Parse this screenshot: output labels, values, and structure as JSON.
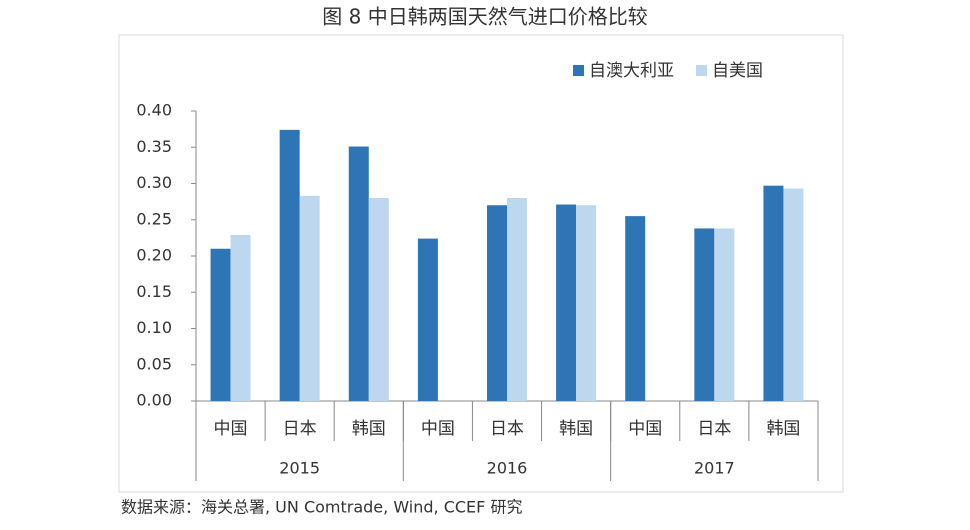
{
  "chart_data": {
    "type": "bar",
    "title": "图 8  中日韩两国天然气进口价格比较",
    "categories": [
      "中国",
      "日本",
      "韩国",
      "中国",
      "日本",
      "韩国",
      "中国",
      "日本",
      "韩国"
    ],
    "category_groups": [
      "2015",
      "2016",
      "2017"
    ],
    "series": [
      {
        "name": "自澳大利亚",
        "color": "#2e75b6",
        "values": [
          0.21,
          0.374,
          0.351,
          0.224,
          0.27,
          0.271,
          0.255,
          0.238,
          0.297
        ]
      },
      {
        "name": "自美国",
        "color": "#bdd7ee",
        "values": [
          0.229,
          0.283,
          0.28,
          null,
          0.28,
          0.27,
          null,
          0.238,
          0.293
        ]
      }
    ],
    "ylim": [
      0,
      0.4
    ],
    "yticks": [
      {
        "value": 0,
        "label": "0.00"
      },
      {
        "value": 0.05,
        "label": "0.05"
      },
      {
        "value": 0.1,
        "label": "0.10"
      },
      {
        "value": 0.15,
        "label": "0.15"
      },
      {
        "value": 0.2,
        "label": "0.20"
      },
      {
        "value": 0.25,
        "label": "0.25"
      },
      {
        "value": 0.3,
        "label": "0.30"
      },
      {
        "value": 0.35,
        "label": "0.35"
      },
      {
        "value": 0.4,
        "label": "0.40"
      }
    ],
    "legend": "top-right",
    "source": "数据来源：海关总署, UN Comtrade, Wind, CCEF 研究"
  }
}
